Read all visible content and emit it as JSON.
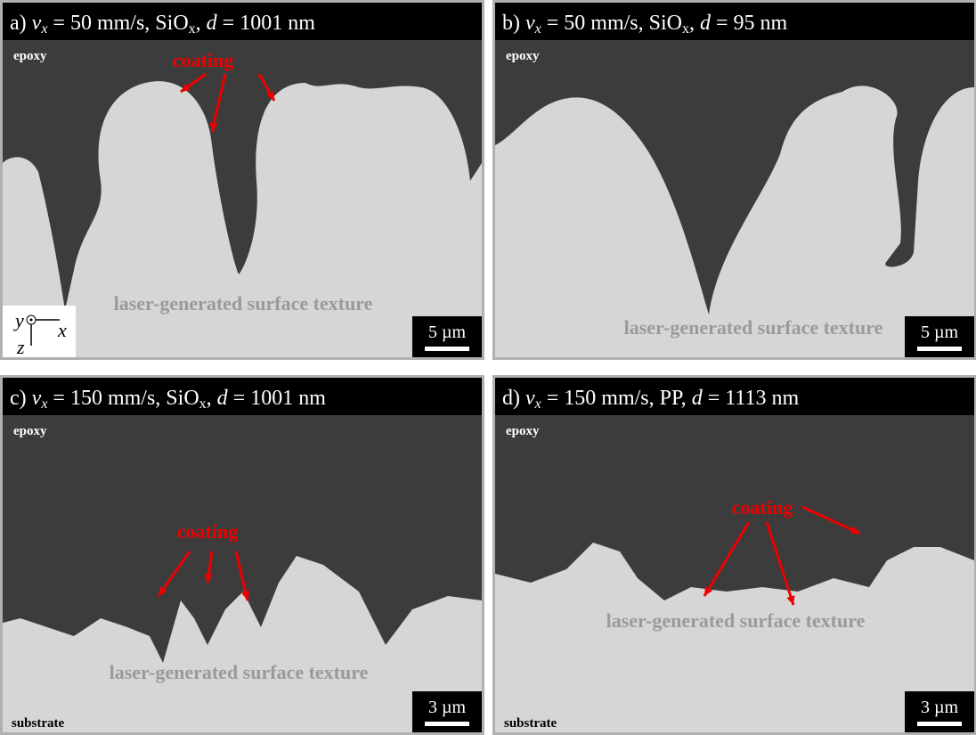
{
  "panels": [
    {
      "title": [
        {
          "text": "a) "
        },
        {
          "text": "v",
          "italic": true
        },
        {
          "text": "x",
          "italic": true,
          "sub": true
        },
        {
          "text": " = 50 mm/s, SiO"
        },
        {
          "text": "x",
          "sub": true
        },
        {
          "text": ", "
        },
        {
          "text": "d",
          "italic": true
        },
        {
          "text": " = 1001 nm"
        }
      ],
      "epoxy": "epoxy",
      "coating": "coating",
      "texture": "laser-generated surface texture",
      "scale": "5 µm",
      "axes": {
        "y": "y",
        "x": "x",
        "z": "z"
      }
    },
    {
      "title": [
        {
          "text": "b) "
        },
        {
          "text": "v",
          "italic": true
        },
        {
          "text": "x",
          "italic": true,
          "sub": true
        },
        {
          "text": " = 50 mm/s, SiO"
        },
        {
          "text": "x",
          "sub": true
        },
        {
          "text": ", "
        },
        {
          "text": "d",
          "italic": true
        },
        {
          "text": " = 95 nm"
        }
      ],
      "epoxy": "epoxy",
      "texture": "laser-generated surface texture",
      "scale": "5 µm"
    },
    {
      "title": [
        {
          "text": "c) "
        },
        {
          "text": "v",
          "italic": true
        },
        {
          "text": "x",
          "italic": true,
          "sub": true
        },
        {
          "text": " = 150 mm/s, SiO"
        },
        {
          "text": "x",
          "sub": true
        },
        {
          "text": ", "
        },
        {
          "text": "d",
          "italic": true
        },
        {
          "text": " = 1001 nm"
        }
      ],
      "epoxy": "epoxy",
      "coating": "coating",
      "texture": "laser-generated surface texture",
      "substrate": "substrate",
      "scale": "3 µm"
    },
    {
      "title": [
        {
          "text": "d) "
        },
        {
          "text": "v",
          "italic": true
        },
        {
          "text": "x",
          "italic": true,
          "sub": true
        },
        {
          "text": " = 150 mm/s, PP, "
        },
        {
          "text": "d",
          "italic": true
        },
        {
          "text": " = 1113 nm"
        }
      ],
      "epoxy": "epoxy",
      "coating": "coating",
      "texture": "laser-generated surface texture",
      "substrate": "substrate",
      "scale": "3 µm"
    }
  ]
}
